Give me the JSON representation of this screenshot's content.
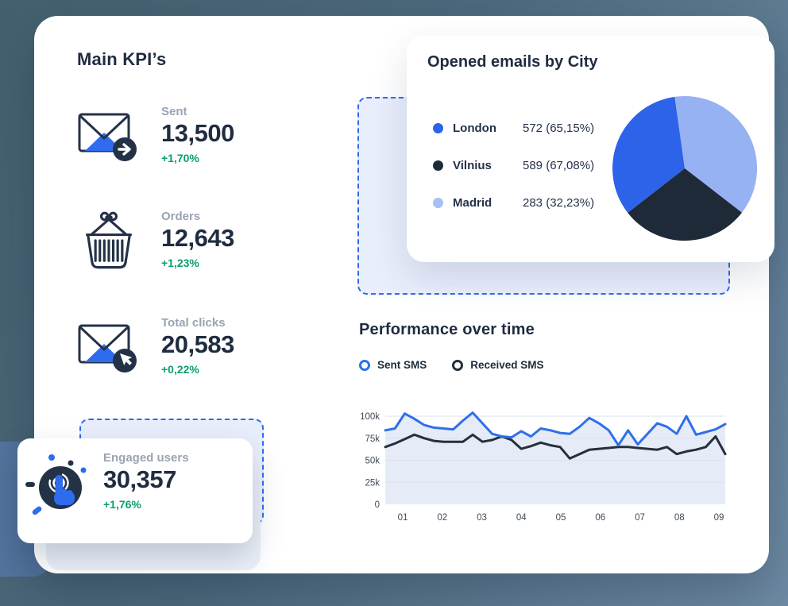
{
  "kpi_section": {
    "title": "Main KPI’s",
    "items": [
      {
        "label": "Sent",
        "value": "13,500",
        "delta": "+1,70%",
        "icon": "sent-mail-icon"
      },
      {
        "label": "Orders",
        "value": "12,643",
        "delta": "+1,23%",
        "icon": "orders-basket-icon"
      },
      {
        "label": "Total clicks",
        "value": "20,583",
        "delta": "+0,22%",
        "icon": "clicks-mail-icon"
      },
      {
        "label": "Engaged users",
        "value": "30,357",
        "delta": "+1,76%",
        "icon": "engaged-touch-icon"
      }
    ]
  },
  "pie_card": {
    "title": "Opened emails by City",
    "legend": [
      {
        "city": "London",
        "value": "572 (65,15%)",
        "color": "#2c63e9"
      },
      {
        "city": "Vilnius",
        "value": "589 (67,08%)",
        "color": "#1e2a38"
      },
      {
        "city": "Madrid",
        "value": "283 (32,23%)",
        "color": "#a7c1f6"
      }
    ]
  },
  "performance": {
    "title": "Performance over time",
    "legend": [
      {
        "label": "Sent SMS",
        "color": "#2f6fec"
      },
      {
        "label": "Received SMS",
        "color": "#25303c"
      }
    ]
  },
  "chart_data": [
    {
      "type": "pie",
      "title": "Opened emails by City",
      "start_angle_deg": -8,
      "slices": [
        {
          "label": "Madrid",
          "display_value": 283,
          "display_pct": "32,23%",
          "angle_fraction": 0.377,
          "color": "#97b2f2"
        },
        {
          "label": "Vilnius",
          "display_value": 589,
          "display_pct": "67,08%",
          "angle_fraction": 0.29,
          "color": "#1e2a38"
        },
        {
          "label": "London",
          "display_value": 572,
          "display_pct": "65,15%",
          "angle_fraction": 0.333,
          "color": "#2c63e9"
        }
      ]
    },
    {
      "type": "line",
      "title": "Performance over time",
      "x_categories": [
        "01",
        "02",
        "03",
        "04",
        "05",
        "06",
        "07",
        "08",
        "09"
      ],
      "yticks": [
        {
          "label": "100k",
          "value": 100
        },
        {
          "label": "75k",
          "value": 75
        },
        {
          "label": "50k",
          "value": 50
        },
        {
          "label": "25k",
          "value": 25
        },
        {
          "label": "0",
          "value": 0
        }
      ],
      "ylim": [
        0,
        110
      ],
      "grid": "horizontal",
      "area_under_first_series": true,
      "area_color": "#e5ebf7",
      "grid_color": "#dde2ee",
      "series": [
        {
          "name": "Sent SMS",
          "color": "#2f6fec",
          "values": [
            84,
            86,
            103,
            97,
            90,
            87,
            86,
            85,
            95,
            104,
            92,
            80,
            77,
            76,
            83,
            77,
            86,
            84,
            81,
            80,
            88,
            98,
            92,
            84,
            67,
            84,
            68,
            80,
            92,
            88,
            80,
            100,
            79,
            82,
            85,
            91
          ]
        },
        {
          "name": "Received SMS",
          "color": "#25303c",
          "values": [
            65,
            69,
            74,
            79,
            75,
            72,
            71,
            71,
            71,
            79,
            71,
            73,
            77,
            73,
            63,
            66,
            70,
            67,
            65,
            52,
            57,
            62,
            63,
            64,
            65,
            65,
            64,
            63,
            62,
            65,
            57,
            60,
            62,
            65,
            77,
            57
          ]
        }
      ]
    }
  ],
  "colors": {
    "accent_blue": "#2f6bed",
    "navy_text": "#1f2c40",
    "grey_label": "#9aa3b4",
    "green_delta": "#0b9e6e",
    "dashed_fill": "#e9eefc",
    "page_bg": "#52708a"
  }
}
